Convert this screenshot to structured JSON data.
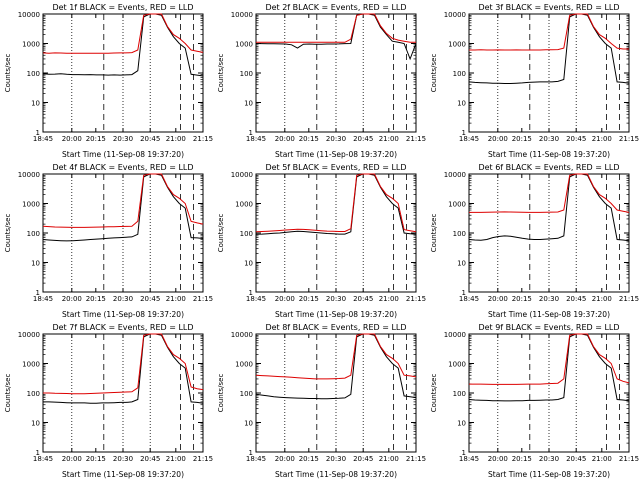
{
  "x_tick_labels": [
    "18:45",
    "20:00",
    "20:15",
    "20:30",
    "20:45",
    "21:00",
    "21:15"
  ],
  "y_tick_labels": [
    "1",
    "10",
    "100",
    "1000",
    "10000"
  ],
  "ylabel": "Counts/sec",
  "xlabel": "Start Time (11-Sep-08 19:37:20)",
  "colors": {
    "events": "#000000",
    "lld": "#dd0000",
    "axes": "#000000"
  },
  "chart_data": [
    {
      "type": "line",
      "title": "Det 1f BLACK = Events, RED = LLD",
      "ylog": true,
      "ylim": [
        1,
        10000
      ],
      "series": [
        {
          "values": [
            95,
            90,
            92,
            95,
            90,
            88,
            88,
            87,
            88,
            86,
            86,
            85,
            86,
            85,
            86,
            88,
            120,
            8000,
            10000,
            10000,
            9000,
            3600,
            1700,
            1000,
            700,
            90,
            85,
            80
          ]
        },
        {
          "values": [
            480,
            470,
            480,
            475,
            470,
            470,
            470,
            465,
            470,
            465,
            470,
            470,
            475,
            480,
            480,
            490,
            600,
            9000,
            10000,
            10000,
            10000,
            3800,
            2000,
            1500,
            1000,
            600,
            550,
            500
          ]
        }
      ]
    },
    {
      "type": "line",
      "title": "Det 2f BLACK = Events, RED = LLD",
      "ylog": true,
      "ylim": [
        1,
        10000
      ],
      "series": [
        {
          "values": [
            1000,
            990,
            980,
            980,
            970,
            960,
            900,
            700,
            950,
            960,
            940,
            950,
            960,
            960,
            970,
            990,
            1000,
            9000,
            10000,
            10000,
            9000,
            3600,
            2000,
            1200,
            1100,
            1000,
            300,
            1000
          ]
        },
        {
          "values": [
            1100,
            1100,
            1100,
            1100,
            1100,
            1100,
            1100,
            1100,
            1100,
            1100,
            1100,
            1100,
            1100,
            1100,
            1100,
            1100,
            1400,
            9000,
            10000,
            10000,
            10000,
            4000,
            2200,
            1500,
            1300,
            1200,
            1100,
            1100
          ]
        }
      ]
    },
    {
      "type": "line",
      "title": "Det 3f BLACK = Events, RED = LLD",
      "ylog": true,
      "ylim": [
        1,
        10000
      ],
      "series": [
        {
          "values": [
            50,
            48,
            47,
            46,
            45,
            45,
            44,
            44,
            45,
            46,
            48,
            49,
            50,
            50,
            50,
            52,
            60,
            8000,
            10000,
            10000,
            9000,
            3600,
            1700,
            1000,
            700,
            50,
            48,
            45
          ]
        },
        {
          "values": [
            600,
            600,
            610,
            600,
            600,
            605,
            600,
            600,
            605,
            600,
            600,
            600,
            600,
            610,
            610,
            620,
            700,
            9000,
            10000,
            10000,
            10000,
            3800,
            2000,
            1500,
            1000,
            700,
            650,
            650
          ]
        }
      ]
    },
    {
      "type": "line",
      "title": "Det 4f BLACK = Events, RED = LLD",
      "ylog": true,
      "ylim": [
        1,
        10000
      ],
      "series": [
        {
          "values": [
            60,
            58,
            56,
            55,
            54,
            55,
            56,
            58,
            60,
            62,
            64,
            66,
            68,
            70,
            72,
            74,
            90,
            8000,
            10000,
            10000,
            9000,
            3600,
            1700,
            1000,
            700,
            70,
            68,
            65
          ]
        },
        {
          "values": [
            170,
            165,
            160,
            158,
            156,
            155,
            155,
            155,
            156,
            158,
            160,
            162,
            164,
            166,
            168,
            170,
            250,
            9000,
            10000,
            10000,
            10000,
            3800,
            2000,
            1500,
            1000,
            250,
            220,
            200
          ]
        }
      ]
    },
    {
      "type": "line",
      "title": "Det 5f BLACK = Events, RED = LLD",
      "ylog": true,
      "ylim": [
        1,
        10000
      ],
      "series": [
        {
          "values": [
            90,
            92,
            95,
            98,
            100,
            105,
            110,
            115,
            112,
            108,
            104,
            100,
            96,
            94,
            92,
            92,
            110,
            8000,
            10000,
            10000,
            9000,
            3600,
            1700,
            1000,
            700,
            100,
            95,
            90
          ]
        },
        {
          "values": [
            110,
            112,
            115,
            118,
            122,
            126,
            130,
            134,
            132,
            128,
            124,
            120,
            116,
            114,
            112,
            112,
            140,
            9000,
            10000,
            10000,
            10000,
            3800,
            2000,
            1500,
            1000,
            130,
            120,
            110
          ]
        }
      ]
    },
    {
      "type": "line",
      "title": "Det 6f BLACK = Events, RED = LLD",
      "ylog": true,
      "ylim": [
        1,
        10000
      ],
      "series": [
        {
          "values": [
            60,
            58,
            57,
            60,
            70,
            76,
            80,
            78,
            72,
            66,
            62,
            60,
            60,
            62,
            64,
            66,
            80,
            8000,
            10000,
            10000,
            9000,
            3600,
            1700,
            1000,
            700,
            60,
            58,
            55
          ]
        },
        {
          "values": [
            500,
            500,
            500,
            505,
            510,
            515,
            520,
            515,
            510,
            505,
            500,
            500,
            500,
            505,
            510,
            515,
            600,
            9000,
            10000,
            10000,
            10000,
            3800,
            2000,
            1500,
            1000,
            600,
            550,
            500
          ]
        }
      ]
    },
    {
      "type": "line",
      "title": "Det 7f BLACK = Events, RED = LLD",
      "ylog": true,
      "ylim": [
        1,
        10000
      ],
      "series": [
        {
          "values": [
            50,
            50,
            49,
            48,
            47,
            46,
            46,
            46,
            45,
            45,
            46,
            46,
            47,
            48,
            48,
            50,
            60,
            8000,
            10000,
            10000,
            9000,
            3600,
            1700,
            1000,
            700,
            50,
            48,
            45
          ]
        },
        {
          "values": [
            100,
            100,
            98,
            97,
            96,
            95,
            95,
            95,
            96,
            98,
            100,
            102,
            104,
            106,
            108,
            110,
            150,
            9000,
            10000,
            10000,
            10000,
            3800,
            2000,
            1500,
            1000,
            160,
            140,
            130
          ]
        }
      ]
    },
    {
      "type": "line",
      "title": "Det 8f BLACK = Events, RED = LLD",
      "ylog": true,
      "ylim": [
        1,
        10000
      ],
      "series": [
        {
          "values": [
            90,
            85,
            80,
            75,
            72,
            70,
            68,
            67,
            66,
            65,
            65,
            64,
            64,
            65,
            66,
            68,
            90,
            8000,
            10000,
            10000,
            9000,
            3600,
            1700,
            1000,
            700,
            80,
            75,
            70
          ]
        },
        {
          "values": [
            400,
            390,
            380,
            370,
            360,
            350,
            340,
            330,
            320,
            310,
            300,
            300,
            300,
            305,
            310,
            320,
            400,
            9000,
            10000,
            10000,
            10000,
            3800,
            2000,
            1500,
            1000,
            400,
            380,
            350
          ]
        }
      ]
    },
    {
      "type": "line",
      "title": "Det 9f BLACK = Events, RED = LLD",
      "ylog": true,
      "ylim": [
        1,
        10000
      ],
      "series": [
        {
          "values": [
            60,
            58,
            57,
            56,
            55,
            55,
            54,
            54,
            55,
            55,
            56,
            56,
            57,
            58,
            58,
            60,
            70,
            8000,
            10000,
            10000,
            9000,
            3600,
            1700,
            1000,
            700,
            60,
            58,
            55
          ]
        },
        {
          "values": [
            200,
            200,
            200,
            198,
            196,
            195,
            195,
            195,
            196,
            198,
            200,
            200,
            200,
            205,
            210,
            215,
            300,
            9000,
            10000,
            10000,
            10000,
            3800,
            2000,
            1500,
            1000,
            300,
            250,
            220
          ]
        }
      ]
    }
  ]
}
